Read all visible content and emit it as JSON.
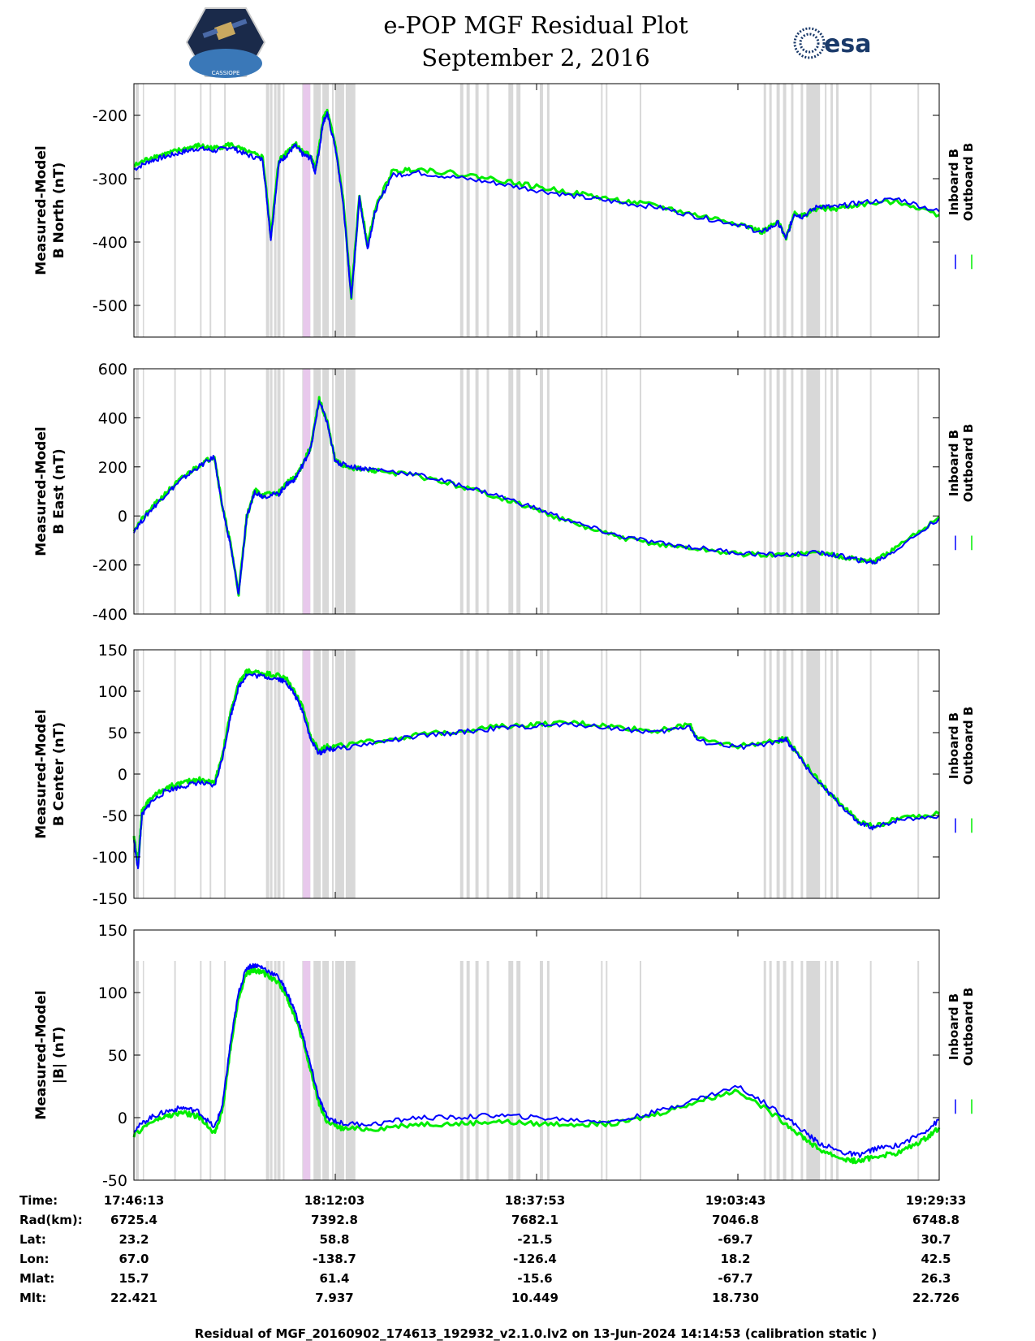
{
  "header": {
    "title_line1": "e-POP MGF Residual Plot",
    "title_line2": "September 2, 2016",
    "logo_left_label": "CASSIOPE",
    "logo_right_text": "esa"
  },
  "colors": {
    "inboard": "#0000ff",
    "outboard": "#00ee00",
    "gap": "#d8d8d8",
    "highlight": "#e8c8ec"
  },
  "chart_data": [
    {
      "type": "line",
      "ylabel_line1": "Measured-Model",
      "ylabel_line2": "B North (nT)",
      "ylim": [
        -550,
        -150
      ],
      "yticks": [
        -200,
        -300,
        -400,
        -500
      ],
      "series": [
        {
          "name": "Inboard B",
          "x": [
            0,
            2,
            4,
            6,
            8,
            10,
            12,
            14,
            16,
            17,
            18,
            19,
            20,
            21,
            22,
            22.5,
            23,
            23.5,
            24,
            25,
            26,
            27,
            28,
            29,
            30,
            32,
            35,
            40,
            45,
            50,
            55,
            60,
            65,
            70,
            75,
            78,
            80,
            81,
            82,
            83,
            85,
            87,
            90,
            95,
            100
          ],
          "y": [
            -285,
            -272,
            -265,
            -258,
            -252,
            -256,
            -250,
            -262,
            -270,
            -395,
            -275,
            -262,
            -248,
            -262,
            -268,
            -290,
            -255,
            -210,
            -198,
            -250,
            -340,
            -490,
            -330,
            -410,
            -350,
            -295,
            -290,
            -298,
            -307,
            -318,
            -328,
            -337,
            -345,
            -360,
            -372,
            -385,
            -370,
            -395,
            -355,
            -360,
            -343,
            -345,
            -338,
            -332,
            -352
          ]
        },
        {
          "name": "Outboard B",
          "x": [
            0,
            2,
            4,
            6,
            8,
            10,
            12,
            14,
            16,
            17,
            18,
            19,
            20,
            21,
            22,
            22.5,
            23,
            23.5,
            24,
            25,
            26,
            27,
            28,
            29,
            30,
            32,
            35,
            40,
            45,
            50,
            55,
            60,
            65,
            70,
            75,
            78,
            80,
            81,
            82,
            83,
            85,
            87,
            90,
            95,
            100
          ],
          "y": [
            -280,
            -267,
            -261,
            -254,
            -248,
            -252,
            -246,
            -258,
            -266,
            -390,
            -271,
            -258,
            -244,
            -258,
            -264,
            -286,
            -251,
            -206,
            -194,
            -246,
            -336,
            -486,
            -326,
            -406,
            -346,
            -290,
            -284,
            -292,
            -301,
            -313,
            -323,
            -334,
            -343,
            -358,
            -370,
            -384,
            -369,
            -393,
            -354,
            -359,
            -346,
            -348,
            -341,
            -336,
            -357
          ]
        }
      ]
    },
    {
      "type": "line",
      "ylabel_line1": "Measured-Model",
      "ylabel_line2": "B East (nT)",
      "ylim": [
        -400,
        600
      ],
      "yticks": [
        600,
        400,
        200,
        0,
        -200,
        -400
      ],
      "series": [
        {
          "name": "Inboard B",
          "x": [
            0,
            2,
            4,
            6,
            8,
            10,
            11,
            12,
            13,
            14,
            15,
            16,
            18,
            19,
            20,
            21,
            22,
            23,
            24,
            25,
            26,
            28,
            30,
            35,
            40,
            45,
            50,
            55,
            60,
            65,
            70,
            75,
            80,
            85,
            88,
            90,
            92,
            95,
            100
          ],
          "y": [
            -60,
            20,
            90,
            150,
            200,
            240,
            30,
            -120,
            -320,
            -10,
            100,
            80,
            90,
            130,
            150,
            210,
            280,
            470,
            380,
            220,
            210,
            195,
            190,
            170,
            130,
            85,
            30,
            -30,
            -80,
            -110,
            -130,
            -150,
            -160,
            -150,
            -165,
            -180,
            -190,
            -130,
            -10
          ]
        },
        {
          "name": "Outboard B",
          "x": [
            0,
            2,
            4,
            6,
            8,
            10,
            11,
            12,
            13,
            14,
            15,
            16,
            18,
            19,
            20,
            21,
            22,
            23,
            24,
            25,
            26,
            28,
            30,
            35,
            40,
            45,
            50,
            55,
            60,
            65,
            70,
            75,
            80,
            85,
            88,
            90,
            92,
            95,
            100
          ],
          "y": [
            -55,
            25,
            95,
            155,
            205,
            245,
            35,
            -115,
            -315,
            -5,
            105,
            85,
            95,
            135,
            155,
            215,
            285,
            475,
            385,
            225,
            205,
            190,
            185,
            165,
            125,
            80,
            25,
            -35,
            -85,
            -115,
            -135,
            -155,
            -160,
            -150,
            -165,
            -178,
            -186,
            -124,
            -4
          ]
        }
      ]
    },
    {
      "type": "line",
      "ylabel_line1": "Measured-Model",
      "ylabel_line2": "B Center (nT)",
      "ylim": [
        -150,
        150
      ],
      "yticks": [
        150,
        100,
        50,
        0,
        -50,
        -100,
        -150
      ],
      "series": [
        {
          "name": "Inboard B",
          "x": [
            0,
            0.5,
            1,
            2,
            4,
            6,
            8,
            10,
            11,
            12,
            13,
            14,
            16,
            18,
            19,
            20,
            21,
            22,
            23,
            24,
            25,
            30,
            35,
            40,
            45,
            50,
            55,
            60,
            65,
            69,
            70,
            75,
            80,
            81,
            82,
            85,
            88,
            90,
            92,
            95,
            100
          ],
          "y": [
            -80,
            -115,
            -50,
            -35,
            -20,
            -15,
            -10,
            -15,
            20,
            70,
            105,
            120,
            118,
            115,
            110,
            95,
            75,
            40,
            25,
            30,
            30,
            38,
            45,
            50,
            55,
            58,
            60,
            55,
            50,
            58,
            40,
            32,
            38,
            42,
            28,
            -10,
            -40,
            -60,
            -65,
            -55,
            -50
          ]
        },
        {
          "name": "Outboard B",
          "x": [
            0,
            0.5,
            1,
            2,
            4,
            6,
            8,
            10,
            11,
            12,
            13,
            14,
            16,
            18,
            19,
            20,
            21,
            22,
            23,
            24,
            25,
            30,
            35,
            40,
            45,
            50,
            55,
            60,
            65,
            69,
            70,
            75,
            80,
            81,
            82,
            85,
            88,
            90,
            92,
            95,
            100
          ],
          "y": [
            -75,
            -110,
            -45,
            -30,
            -16,
            -11,
            -6,
            -11,
            24,
            74,
            109,
            124,
            122,
            119,
            114,
            99,
            79,
            44,
            28,
            33,
            33,
            40,
            47,
            52,
            57,
            60,
            62,
            57,
            52,
            60,
            42,
            34,
            40,
            44,
            30,
            -8,
            -38,
            -58,
            -63,
            -53,
            -48
          ]
        }
      ]
    },
    {
      "type": "line",
      "ylabel_line1": "Measured-Model",
      "ylabel_line2": "|B| (nT)",
      "ylim": [
        -50,
        150
      ],
      "yticks": [
        150,
        100,
        50,
        0,
        -50
      ],
      "series": [
        {
          "name": "Inboard B",
          "x": [
            0,
            2,
            4,
            6,
            8,
            10,
            11,
            12,
            13,
            14,
            15,
            16,
            18,
            19,
            20,
            21,
            22,
            23,
            24,
            26,
            30,
            35,
            40,
            45,
            50,
            55,
            60,
            65,
            70,
            75,
            80,
            83,
            85,
            88,
            90,
            92,
            95,
            98,
            100
          ],
          "y": [
            -10,
            0,
            5,
            8,
            5,
            -8,
            10,
            60,
            100,
            120,
            122,
            120,
            112,
            100,
            85,
            65,
            40,
            15,
            0,
            -5,
            -5,
            0,
            0,
            2,
            0,
            -2,
            -3,
            5,
            15,
            25,
            5,
            -10,
            -20,
            -28,
            -30,
            -25,
            -22,
            -12,
            -2
          ]
        },
        {
          "name": "Outboard B",
          "x": [
            0,
            2,
            4,
            6,
            8,
            10,
            11,
            12,
            13,
            14,
            15,
            16,
            18,
            19,
            20,
            21,
            22,
            23,
            24,
            26,
            30,
            35,
            40,
            45,
            50,
            55,
            60,
            65,
            70,
            75,
            80,
            83,
            85,
            88,
            90,
            92,
            95,
            98,
            100
          ],
          "y": [
            -14,
            -4,
            1,
            4,
            1,
            -12,
            6,
            56,
            96,
            116,
            118,
            116,
            108,
            96,
            81,
            61,
            36,
            11,
            -4,
            -9,
            -9,
            -5,
            -5,
            -3,
            -5,
            -5,
            -5,
            3,
            13,
            22,
            0,
            -15,
            -25,
            -33,
            -35,
            -31,
            -28,
            -18,
            -8
          ]
        }
      ]
    }
  ],
  "legend": {
    "inboard_label": "Inboard B",
    "outboard_label": "Outboard B",
    "symbol": "|"
  },
  "xaxis": {
    "tick_fractions": [
      0,
      0.25,
      0.5,
      0.75,
      1.0
    ],
    "times": [
      "17:46:13",
      "18:12:03",
      "18:37:53",
      "19:03:43",
      "19:29:33"
    ]
  },
  "gap_bands": [
    [
      0.2,
      0.6
    ],
    [
      1.1,
      1.2
    ],
    [
      5.0,
      5.2
    ],
    [
      8.2,
      8.4
    ],
    [
      9.4,
      9.6
    ],
    [
      11.2,
      11.4
    ],
    [
      16.4,
      16.8
    ],
    [
      16.9,
      17.2
    ],
    [
      17.4,
      17.7
    ],
    [
      17.8,
      18.2
    ],
    [
      18.5,
      18.7
    ],
    [
      20.9,
      21.9
    ],
    [
      22.3,
      23.2
    ],
    [
      23.4,
      24.2
    ],
    [
      24.6,
      24.8
    ],
    [
      25.0,
      26.1
    ],
    [
      26.3,
      27.5
    ],
    [
      40.5,
      40.9
    ],
    [
      41.3,
      41.7
    ],
    [
      42.4,
      42.8
    ],
    [
      43.8,
      44.1
    ],
    [
      46.5,
      47.1
    ],
    [
      47.5,
      48.0
    ],
    [
      50.4,
      50.8
    ],
    [
      51.3,
      51.6
    ],
    [
      58.0,
      58.2
    ],
    [
      58.6,
      58.8
    ],
    [
      62.8,
      63.0
    ],
    [
      78.2,
      78.5
    ],
    [
      78.9,
      79.2
    ],
    [
      79.8,
      80.2
    ],
    [
      80.6,
      81.0
    ],
    [
      81.6,
      81.9
    ],
    [
      82.8,
      83.1
    ],
    [
      83.5,
      85.2
    ],
    [
      85.8,
      86.0
    ],
    [
      86.5,
      86.8
    ],
    [
      87.2,
      87.5
    ],
    [
      91.4,
      91.6
    ],
    [
      97.3,
      97.5
    ]
  ],
  "highlight_bands": [
    [
      21.0,
      21.9
    ]
  ],
  "ephemeris": {
    "labels": [
      "Time:",
      "Rad(km):",
      "Lat:",
      "Lon:",
      "Mlat:",
      "Mlt:"
    ],
    "columns": [
      [
        "17:46:13",
        "6725.4",
        "23.2",
        "67.0",
        "15.7",
        "22.421"
      ],
      [
        "18:12:03",
        "7392.8",
        "58.8",
        "-138.7",
        "61.4",
        "7.937"
      ],
      [
        "18:37:53",
        "7682.1",
        "-21.5",
        "-126.4",
        "-15.6",
        "10.449"
      ],
      [
        "19:03:43",
        "7046.8",
        "-69.7",
        "18.2",
        "-67.7",
        "18.730"
      ],
      [
        "19:29:33",
        "6748.8",
        "30.7",
        "42.5",
        "26.3",
        "22.726"
      ]
    ]
  },
  "footer": {
    "text": "Residual of MGF_20160902_174613_192932_v2.1.0.lv2 on 13-Jun-2024 14:14:53 (calibration static )"
  }
}
